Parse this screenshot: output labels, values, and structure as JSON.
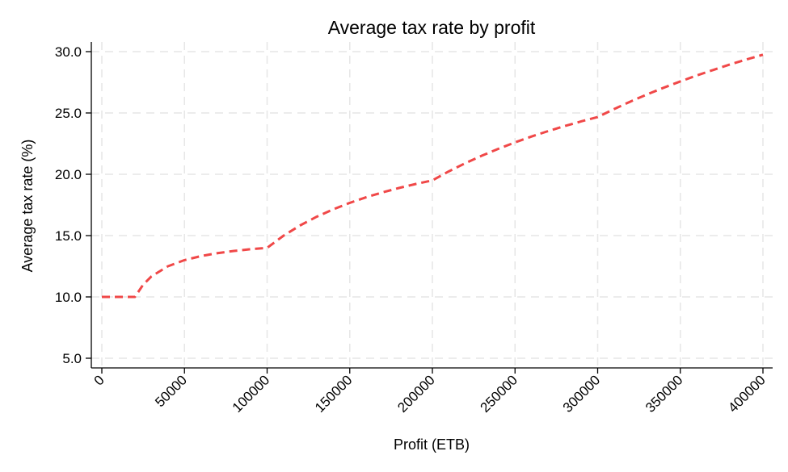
{
  "chart_data": {
    "type": "line",
    "title": "Average tax rate by profit",
    "xlabel": "Profit (ETB)",
    "ylabel": "Average tax rate (%)",
    "xlim": [
      0,
      400000
    ],
    "ylim": [
      5,
      30
    ],
    "xticks": [
      0,
      50000,
      100000,
      150000,
      200000,
      250000,
      300000,
      350000,
      400000
    ],
    "xtick_labels": [
      "0",
      "50000",
      "100000",
      "150000",
      "200000",
      "250000",
      "300000",
      "350000",
      "400000"
    ],
    "yticks": [
      5,
      10,
      15,
      20,
      25,
      30
    ],
    "ytick_labels": [
      "5.0",
      "10.0",
      "15.0",
      "20.0",
      "25.0",
      "30.0"
    ],
    "grid": true,
    "series": [
      {
        "color": "#f04848",
        "line_style": "dashed",
        "x": [
          0,
          10000,
          20000,
          25000,
          30000,
          40000,
          50000,
          60000,
          70000,
          80000,
          90000,
          100000,
          110000,
          120000,
          130000,
          140000,
          150000,
          160000,
          170000,
          180000,
          190000,
          200000,
          210000,
          220000,
          230000,
          240000,
          250000,
          260000,
          270000,
          280000,
          290000,
          300000,
          310000,
          320000,
          330000,
          340000,
          350000,
          360000,
          370000,
          380000,
          390000,
          400000
        ],
        "y": [
          10.0,
          10.0,
          10.0,
          11.0,
          11.67,
          12.5,
          13.0,
          13.33,
          13.57,
          13.75,
          13.89,
          14.0,
          15.0,
          15.83,
          16.54,
          17.14,
          17.67,
          18.13,
          18.53,
          18.89,
          19.21,
          19.5,
          20.24,
          20.91,
          21.52,
          22.08,
          22.6,
          23.08,
          23.52,
          23.93,
          24.31,
          24.67,
          25.32,
          25.94,
          26.52,
          27.06,
          27.57,
          28.06,
          28.51,
          28.95,
          29.36,
          29.75
        ]
      }
    ]
  }
}
